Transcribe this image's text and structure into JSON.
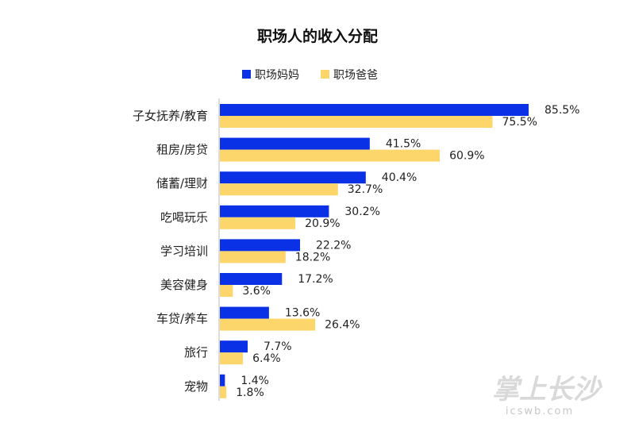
{
  "chart_data": {
    "type": "bar",
    "orientation": "horizontal",
    "title": "职场人的收入分配",
    "legend_position": "top",
    "categories": [
      "子女抚养/教育",
      "租房/房贷",
      "储蓄/理财",
      "吃喝玩乐",
      "学习培训",
      "美容健身",
      "车贷/养车",
      "旅行",
      "宠物"
    ],
    "series": [
      {
        "name": "职场妈妈",
        "color": "#0a31e6",
        "values": [
          85.5,
          41.5,
          40.4,
          30.2,
          22.2,
          17.2,
          13.6,
          7.7,
          1.4
        ],
        "labels": [
          "85.5%",
          "41.5%",
          "40.4%",
          "30.2%",
          "22.2%",
          "17.2%",
          "13.6%",
          "7.7%",
          "1.4%"
        ]
      },
      {
        "name": "职场爸爸",
        "color": "#fcd66a",
        "values": [
          75.5,
          60.9,
          32.7,
          20.9,
          18.2,
          3.6,
          26.4,
          6.4,
          1.8
        ],
        "labels": [
          "75.5%",
          "60.9%",
          "32.7%",
          "20.9%",
          "18.2%",
          "3.6%",
          "26.4%",
          "6.4%",
          "1.8%"
        ]
      }
    ],
    "xlim": [
      0,
      100
    ],
    "grid": false
  },
  "watermark": {
    "main": "掌上长沙",
    "sub": "icswb.com"
  }
}
